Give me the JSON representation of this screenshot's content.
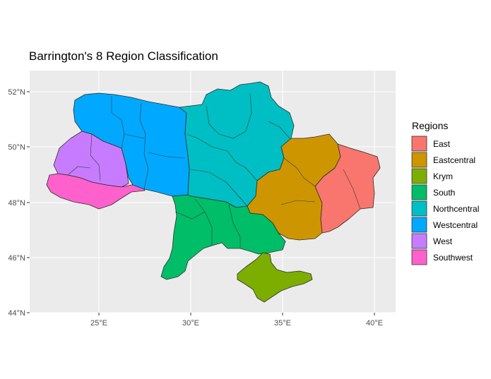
{
  "title": "Barrington's 8 Region Classification",
  "axes": {
    "x_ticks": [
      "25°E",
      "30°E",
      "35°E",
      "40°E"
    ],
    "y_ticks": [
      "52°N",
      "50°N",
      "48°N",
      "46°N",
      "44°N"
    ]
  },
  "legend": {
    "title": "Regions",
    "items": [
      {
        "label": "East",
        "color": "#F8766D"
      },
      {
        "label": "Eastcentral",
        "color": "#CD9600"
      },
      {
        "label": "Krym",
        "color": "#7CAE00"
      },
      {
        "label": "South",
        "color": "#00BE67"
      },
      {
        "label": "Northcentral",
        "color": "#00BFC4"
      },
      {
        "label": "Westcentral",
        "color": "#00A9FF"
      },
      {
        "label": "West",
        "color": "#C77CFF"
      },
      {
        "label": "Southwest",
        "color": "#FF61CC"
      }
    ]
  },
  "colors": {
    "panel_background": "#EBEBEB",
    "grid": "#FFFFFF"
  }
}
